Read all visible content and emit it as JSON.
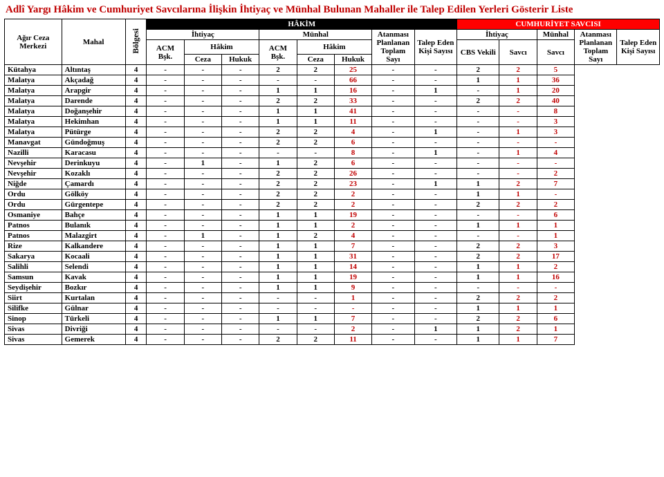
{
  "title": "Adlî Yargı Hâkim ve Cumhuriyet Savcılarına İlişkin İhtiyaç ve Münhal Bulunan Mahaller ile Talep Edilen Yerleri Gösterir Liste",
  "headers": {
    "merkezi": "Ağır Ceza Merkezi",
    "mahal": "Mahal",
    "bolgesi": "Bölgesi",
    "hakim_group": "HÂKİM",
    "savci_group": "CUMHURİYET SAVCISI",
    "ihtiyac": "İhtiyaç",
    "munhal": "Münhal",
    "atanmasi": "Atanması Planlanan Toplam Sayı",
    "atanmasi2": "Atanması Planlanan Toplam Sayı",
    "talep": "Talep Eden Kişi Sayısı",
    "acm": "ACM Bşk.",
    "hakim": "Hâkim",
    "ceza": "Ceza",
    "hukuk": "Hukuk",
    "cbs": "CBS Vekili",
    "savci": "Savcı"
  },
  "rows": [
    {
      "m": "Kütahya",
      "h": "Altıntaş",
      "b": 4,
      "c": [
        "-",
        "-",
        "-",
        "2",
        "2",
        "25",
        "-",
        "-",
        "2",
        "2",
        "5"
      ]
    },
    {
      "m": "Malatya",
      "h": "Akçadağ",
      "b": 4,
      "c": [
        "-",
        "-",
        "-",
        "-",
        "-",
        "66",
        "-",
        "-",
        "1",
        "1",
        "36"
      ]
    },
    {
      "m": "Malatya",
      "h": "Arapgir",
      "b": 4,
      "c": [
        "-",
        "-",
        "-",
        "1",
        "1",
        "16",
        "-",
        "1",
        "-",
        "1",
        "20"
      ]
    },
    {
      "m": "Malatya",
      "h": "Darende",
      "b": 4,
      "c": [
        "-",
        "-",
        "-",
        "2",
        "2",
        "33",
        "-",
        "-",
        "2",
        "2",
        "40"
      ]
    },
    {
      "m": "Malatya",
      "h": "Doğanşehir",
      "b": 4,
      "c": [
        "-",
        "-",
        "-",
        "1",
        "1",
        "41",
        "-",
        "-",
        "-",
        "-",
        "8"
      ]
    },
    {
      "m": "Malatya",
      "h": "Hekimhan",
      "b": 4,
      "c": [
        "-",
        "-",
        "-",
        "1",
        "1",
        "11",
        "-",
        "-",
        "-",
        "-",
        "3"
      ]
    },
    {
      "m": "Malatya",
      "h": "Pütürge",
      "b": 4,
      "c": [
        "-",
        "-",
        "-",
        "2",
        "2",
        "4",
        "-",
        "1",
        "-",
        "1",
        "3"
      ]
    },
    {
      "m": "Manavgat",
      "h": "Gündoğmuş",
      "b": 4,
      "c": [
        "-",
        "-",
        "-",
        "2",
        "2",
        "6",
        "-",
        "-",
        "-",
        "-",
        "-"
      ]
    },
    {
      "m": "Nazilli",
      "h": "Karacasu",
      "b": 4,
      "c": [
        "-",
        "-",
        "-",
        "-",
        "-",
        "8",
        "-",
        "1",
        "-",
        "1",
        "4"
      ]
    },
    {
      "m": "Nevşehir",
      "h": "Derinkuyu",
      "b": 4,
      "c": [
        "-",
        "1",
        "-",
        "1",
        "2",
        "6",
        "-",
        "-",
        "-",
        "-",
        "-"
      ]
    },
    {
      "m": "Nevşehir",
      "h": "Kozaklı",
      "b": 4,
      "c": [
        "-",
        "-",
        "-",
        "2",
        "2",
        "26",
        "-",
        "-",
        "-",
        "-",
        "2"
      ]
    },
    {
      "m": "Niğde",
      "h": "Çamardı",
      "b": 4,
      "c": [
        "-",
        "-",
        "-",
        "2",
        "2",
        "23",
        "-",
        "1",
        "1",
        "2",
        "7"
      ]
    },
    {
      "m": "Ordu",
      "h": "Gölköy",
      "b": 4,
      "c": [
        "-",
        "-",
        "-",
        "2",
        "2",
        "2",
        "-",
        "-",
        "1",
        "1",
        "-"
      ]
    },
    {
      "m": "Ordu",
      "h": "Gürgentepe",
      "b": 4,
      "c": [
        "-",
        "-",
        "-",
        "2",
        "2",
        "2",
        "-",
        "-",
        "2",
        "2",
        "2"
      ]
    },
    {
      "m": "Osmaniye",
      "h": "Bahçe",
      "b": 4,
      "c": [
        "-",
        "-",
        "-",
        "1",
        "1",
        "19",
        "-",
        "-",
        "-",
        "-",
        "6"
      ]
    },
    {
      "m": "Patnos",
      "h": "Bulanık",
      "b": 4,
      "c": [
        "-",
        "-",
        "-",
        "1",
        "1",
        "2",
        "-",
        "-",
        "1",
        "1",
        "1"
      ]
    },
    {
      "m": "Patnos",
      "h": "Malazgirt",
      "b": 4,
      "c": [
        "-",
        "1",
        "-",
        "1",
        "2",
        "4",
        "-",
        "-",
        "-",
        "-",
        "1"
      ]
    },
    {
      "m": "Rize",
      "h": "Kalkandere",
      "b": 4,
      "c": [
        "-",
        "-",
        "-",
        "1",
        "1",
        "7",
        "-",
        "-",
        "2",
        "2",
        "3"
      ]
    },
    {
      "m": "Sakarya",
      "h": "Kocaali",
      "b": 4,
      "c": [
        "-",
        "-",
        "-",
        "1",
        "1",
        "31",
        "-",
        "-",
        "2",
        "2",
        "17"
      ]
    },
    {
      "m": "Salihli",
      "h": "Selendi",
      "b": 4,
      "c": [
        "-",
        "-",
        "-",
        "1",
        "1",
        "14",
        "-",
        "-",
        "1",
        "1",
        "2"
      ]
    },
    {
      "m": "Samsun",
      "h": "Kavak",
      "b": 4,
      "c": [
        "-",
        "-",
        "-",
        "1",
        "1",
        "19",
        "-",
        "-",
        "1",
        "1",
        "16"
      ]
    },
    {
      "m": "Seydişehir",
      "h": "Bozkır",
      "b": 4,
      "c": [
        "-",
        "-",
        "-",
        "1",
        "1",
        "9",
        "-",
        "-",
        "-",
        "-",
        "-"
      ]
    },
    {
      "m": "Siirt",
      "h": "Kurtalan",
      "b": 4,
      "c": [
        "-",
        "-",
        "-",
        "-",
        "-",
        "1",
        "-",
        "-",
        "2",
        "2",
        "2"
      ]
    },
    {
      "m": "Silifke",
      "h": "Gülnar",
      "b": 4,
      "c": [
        "-",
        "-",
        "-",
        "-",
        "-",
        "-",
        "-",
        "-",
        "1",
        "1",
        "1"
      ]
    },
    {
      "m": "Sinop",
      "h": "Türkeli",
      "b": 4,
      "c": [
        "-",
        "-",
        "-",
        "1",
        "1",
        "7",
        "-",
        "-",
        "2",
        "2",
        "6"
      ]
    },
    {
      "m": "Sivas",
      "h": "Divriği",
      "b": 4,
      "c": [
        "-",
        "-",
        "-",
        "-",
        "-",
        "2",
        "-",
        "1",
        "1",
        "2",
        "1"
      ]
    },
    {
      "m": "Sivas",
      "h": "Gemerek",
      "b": 4,
      "c": [
        "-",
        "-",
        "-",
        "2",
        "2",
        "11",
        "-",
        "-",
        "1",
        "1",
        "7"
      ]
    }
  ],
  "red_cols": [
    5,
    9,
    10
  ],
  "colors": {
    "title": "#c00000",
    "header_black_bg": "#000000",
    "header_red_bg": "#ff0000",
    "red_text": "#c00000",
    "border": "#000000"
  }
}
